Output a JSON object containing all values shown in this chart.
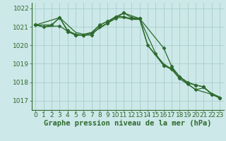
{
  "background_color": "#cde8e8",
  "grid_color": "#a8cece",
  "line_color": "#2d6a2d",
  "title": "Graphe pression niveau de la mer (hPa)",
  "xlim": [
    -0.5,
    23.5
  ],
  "ylim": [
    1016.5,
    1022.3
  ],
  "yticks": [
    1017,
    1018,
    1019,
    1020,
    1021,
    1022
  ],
  "xticks": [
    0,
    1,
    2,
    3,
    4,
    5,
    6,
    7,
    8,
    9,
    10,
    11,
    12,
    13,
    14,
    15,
    16,
    17,
    18,
    19,
    20,
    21,
    22,
    23
  ],
  "series": [
    {
      "x": [
        0,
        1,
        2,
        3,
        4,
        5,
        6,
        7,
        8,
        9,
        10,
        11,
        12,
        13,
        14,
        15,
        16,
        17,
        18,
        19,
        20,
        21,
        22,
        23
      ],
      "y": [
        1021.1,
        1021.0,
        1021.1,
        1021.5,
        1021.1,
        1020.7,
        1020.6,
        1020.7,
        1021.1,
        1021.3,
        1021.5,
        1021.5,
        1021.4,
        1021.4,
        1020.0,
        1019.5,
        1019.0,
        1018.7,
        1018.2,
        1017.9,
        1017.6,
        1017.7,
        1017.4,
        1017.2
      ],
      "marker": null,
      "linewidth": 0.9
    },
    {
      "x": [
        0,
        3,
        4,
        5,
        6,
        7,
        8,
        9,
        10,
        11,
        12,
        13,
        16,
        17,
        18,
        19,
        20,
        21,
        22,
        23
      ],
      "y": [
        1021.1,
        1021.5,
        1020.8,
        1020.6,
        1020.55,
        1020.55,
        1021.0,
        1021.2,
        1021.55,
        1021.75,
        1021.5,
        1021.45,
        1019.85,
        1018.85,
        1018.3,
        1018.0,
        1017.85,
        1017.75,
        1017.35,
        1017.15
      ],
      "marker": "D",
      "linewidth": 0.9
    },
    {
      "x": [
        0,
        2,
        3,
        4,
        5,
        6,
        7,
        9,
        10,
        11,
        13,
        15,
        16,
        17,
        18,
        19,
        20,
        21,
        22,
        23
      ],
      "y": [
        1021.1,
        1021.1,
        1021.5,
        1020.75,
        1020.55,
        1020.55,
        1020.65,
        1021.2,
        1021.45,
        1021.75,
        1021.45,
        1019.55,
        1018.9,
        1018.75,
        1018.3,
        1017.95,
        1017.85,
        1017.75,
        1017.35,
        1017.15
      ],
      "marker": "D",
      "linewidth": 0.9
    },
    {
      "x": [
        0,
        1,
        3,
        4,
        5,
        6,
        7,
        8,
        9,
        10,
        11,
        12,
        13,
        14,
        16,
        17,
        18,
        19,
        20,
        22,
        23
      ],
      "y": [
        1021.1,
        1021.0,
        1021.05,
        1020.75,
        1020.55,
        1020.55,
        1020.65,
        1021.1,
        1021.3,
        1021.55,
        1021.55,
        1021.45,
        1021.45,
        1020.0,
        1018.9,
        1018.7,
        1018.2,
        1017.9,
        1017.6,
        1017.35,
        1017.15
      ],
      "marker": "D",
      "linewidth": 0.9
    }
  ],
  "title_fontsize": 7.5,
  "tick_fontsize": 6.5,
  "title_color": "#2d6a2d",
  "tick_color": "#2d6a2d",
  "spine_color": "#2d6a2d"
}
